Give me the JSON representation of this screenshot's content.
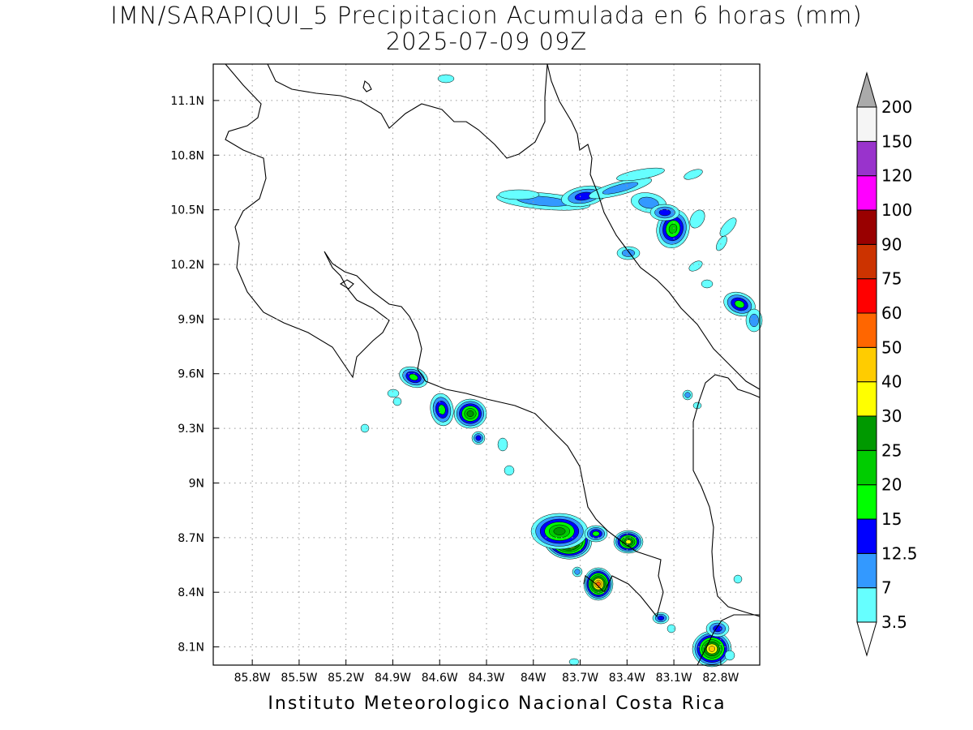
{
  "title": {
    "line1": "IMN/SARAPIQUI_5 Precipitacion Acumulada en 6 horas (mm)",
    "line2": "2025-07-09 09Z"
  },
  "footer": "Instituto Meteorologico Nacional Costa Rica",
  "map": {
    "lon_range": [
      -86.05,
      -82.55
    ],
    "lat_range": [
      8.0,
      11.3
    ],
    "lon_ticks": [
      -85.8,
      -85.5,
      -85.2,
      -84.9,
      -84.6,
      -84.3,
      -84.0,
      -83.7,
      -83.4,
      -83.1,
      -82.8
    ],
    "lon_labels": [
      "85.8W",
      "85.5W",
      "85.2W",
      "84.9W",
      "84.6W",
      "84.3W",
      "84W",
      "83.7W",
      "83.4W",
      "83.1W",
      "82.8W"
    ],
    "lat_ticks": [
      8.1,
      8.4,
      8.7,
      9.0,
      9.3,
      9.6,
      9.9,
      10.2,
      10.5,
      10.8,
      11.1
    ],
    "lat_labels": [
      "8.1N",
      "8.4N",
      "8.7N",
      "9N",
      "9.3N",
      "9.6N",
      "9.9N",
      "10.2N",
      "10.5N",
      "10.8N",
      "11.1N"
    ],
    "grid": true
  },
  "colorbar": {
    "labels": [
      "3.5",
      "7",
      "12.5",
      "15",
      "20",
      "25",
      "30",
      "40",
      "50",
      "60",
      "75",
      "90",
      "100",
      "120",
      "150",
      "200"
    ],
    "colors": [
      "#66ffff",
      "#3399ff",
      "#0000ff",
      "#00ff00",
      "#00cc00",
      "#009900",
      "#ffff00",
      "#ffcc00",
      "#ff6600",
      "#ff0000",
      "#cc3300",
      "#990000",
      "#ff00ff",
      "#9933cc",
      "#f5f5f5",
      "#aaaaaa"
    ]
  }
}
